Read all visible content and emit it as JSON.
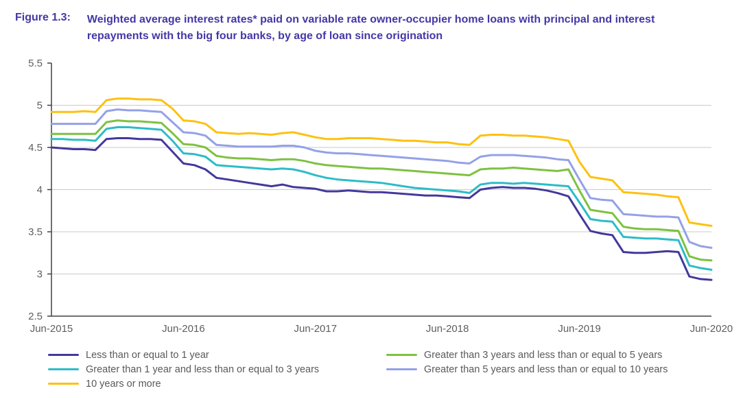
{
  "figure": {
    "label": "Figure 1.3:",
    "title": "Weighted average interest rates* paid on variable rate owner-occupier home loans with principal and interest repayments with the big four banks, by age of loan since origination"
  },
  "colors": {
    "title_text": "#4238a6",
    "axis_text": "#5b5e61",
    "legend_text": "#58595b",
    "gridline": "#c9cacb",
    "axis_line": "#404040",
    "background": "#ffffff"
  },
  "chart_data": {
    "type": "line",
    "title": "Weighted average interest rates paid on variable rate owner-occupier home loans, big four banks, by age of loan",
    "xlabel": "",
    "ylabel": "",
    "legend_position": "bottom",
    "grid": "horizontal",
    "y_axis": {
      "min": 2.5,
      "max": 5.5,
      "tick_values": [
        5.5,
        5,
        4.5,
        4,
        3.5,
        3,
        2.5
      ],
      "tick_labels": [
        "5.5",
        "5",
        "4.5",
        "4",
        "3.5",
        "3",
        "2.5"
      ],
      "grid_values": [
        5,
        4.5,
        4,
        3.5,
        3
      ]
    },
    "x_axis_ticks": [
      {
        "label": "Jun-2015",
        "month_index": 0
      },
      {
        "label": "Jun-2016",
        "month_index": 12
      },
      {
        "label": "Jun-2017",
        "month_index": 24
      },
      {
        "label": "Jun-2018",
        "month_index": 36
      },
      {
        "label": "Jun-2019",
        "month_index": 48
      },
      {
        "label": "Jun-2020",
        "month_index": 60
      }
    ],
    "x": [
      "Jun-2015",
      "Jul-2015",
      "Aug-2015",
      "Sep-2015",
      "Oct-2015",
      "Nov-2015",
      "Dec-2015",
      "Jan-2016",
      "Feb-2016",
      "Mar-2016",
      "Apr-2016",
      "May-2016",
      "Jun-2016",
      "Jul-2016",
      "Aug-2016",
      "Sep-2016",
      "Oct-2016",
      "Nov-2016",
      "Dec-2016",
      "Jan-2017",
      "Feb-2017",
      "Mar-2017",
      "Apr-2017",
      "May-2017",
      "Jun-2017",
      "Jul-2017",
      "Aug-2017",
      "Sep-2017",
      "Oct-2017",
      "Nov-2017",
      "Dec-2017",
      "Jan-2018",
      "Feb-2018",
      "Mar-2018",
      "Apr-2018",
      "May-2018",
      "Jun-2018",
      "Jul-2018",
      "Aug-2018",
      "Sep-2018",
      "Oct-2018",
      "Nov-2018",
      "Dec-2018",
      "Jan-2019",
      "Feb-2019",
      "Mar-2019",
      "Apr-2019",
      "May-2019",
      "Jun-2019",
      "Jul-2019",
      "Aug-2019",
      "Sep-2019",
      "Oct-2019",
      "Nov-2019",
      "Dec-2019",
      "Jan-2020",
      "Feb-2020",
      "Mar-2020",
      "Apr-2020",
      "May-2020",
      "Jun-2020"
    ],
    "series": [
      {
        "name": "Less than or equal to 1 year",
        "color": "#43389b",
        "values": [
          4.5,
          4.49,
          4.48,
          4.48,
          4.47,
          4.6,
          4.61,
          4.61,
          4.6,
          4.6,
          4.59,
          4.45,
          4.31,
          4.29,
          4.24,
          4.14,
          4.12,
          4.1,
          4.08,
          4.06,
          4.04,
          4.06,
          4.03,
          4.02,
          4.01,
          3.98,
          3.98,
          3.99,
          3.98,
          3.97,
          3.97,
          3.96,
          3.95,
          3.94,
          3.93,
          3.93,
          3.92,
          3.91,
          3.9,
          4.0,
          4.02,
          4.03,
          4.02,
          4.02,
          4.01,
          3.99,
          3.96,
          3.92,
          3.71,
          3.51,
          3.48,
          3.46,
          3.26,
          3.25,
          3.25,
          3.26,
          3.27,
          3.26,
          2.97,
          2.94,
          2.93
        ]
      },
      {
        "name": "Greater than 1 year and less than or equal to 3 years",
        "color": "#2cbcc7",
        "values": [
          4.6,
          4.6,
          4.59,
          4.59,
          4.58,
          4.72,
          4.74,
          4.74,
          4.73,
          4.72,
          4.71,
          4.58,
          4.43,
          4.42,
          4.39,
          4.29,
          4.28,
          4.27,
          4.26,
          4.25,
          4.24,
          4.25,
          4.24,
          4.21,
          4.17,
          4.14,
          4.12,
          4.11,
          4.1,
          4.09,
          4.08,
          4.06,
          4.04,
          4.02,
          4.01,
          4.0,
          3.99,
          3.98,
          3.96,
          4.06,
          4.08,
          4.08,
          4.07,
          4.08,
          4.07,
          4.06,
          4.05,
          4.04,
          3.85,
          3.65,
          3.63,
          3.62,
          3.44,
          3.43,
          3.42,
          3.42,
          3.41,
          3.4,
          3.1,
          3.07,
          3.05
        ]
      },
      {
        "name": "Greater than 3 years and less than or equal to 5 years",
        "color": "#7ec141",
        "values": [
          4.66,
          4.66,
          4.66,
          4.66,
          4.66,
          4.8,
          4.82,
          4.81,
          4.81,
          4.8,
          4.79,
          4.67,
          4.54,
          4.53,
          4.5,
          4.4,
          4.38,
          4.37,
          4.37,
          4.36,
          4.35,
          4.36,
          4.36,
          4.34,
          4.31,
          4.29,
          4.28,
          4.27,
          4.26,
          4.25,
          4.25,
          4.24,
          4.23,
          4.22,
          4.21,
          4.2,
          4.19,
          4.18,
          4.17,
          4.24,
          4.25,
          4.25,
          4.26,
          4.25,
          4.24,
          4.23,
          4.22,
          4.24,
          3.99,
          3.76,
          3.74,
          3.72,
          3.56,
          3.54,
          3.53,
          3.53,
          3.52,
          3.51,
          3.21,
          3.17,
          3.16
        ]
      },
      {
        "name": "Greater than 5 years and less than or equal to 10 years",
        "color": "#94a1e7",
        "values": [
          4.78,
          4.78,
          4.78,
          4.78,
          4.78,
          4.93,
          4.95,
          4.94,
          4.94,
          4.93,
          4.92,
          4.8,
          4.68,
          4.67,
          4.64,
          4.53,
          4.52,
          4.51,
          4.51,
          4.51,
          4.51,
          4.52,
          4.52,
          4.5,
          4.46,
          4.44,
          4.43,
          4.43,
          4.42,
          4.41,
          4.4,
          4.39,
          4.38,
          4.37,
          4.36,
          4.35,
          4.34,
          4.32,
          4.31,
          4.39,
          4.41,
          4.41,
          4.41,
          4.4,
          4.39,
          4.38,
          4.36,
          4.35,
          4.12,
          3.9,
          3.88,
          3.87,
          3.71,
          3.7,
          3.69,
          3.68,
          3.68,
          3.67,
          3.38,
          3.33,
          3.31
        ]
      },
      {
        "name": "10 years or more",
        "color": "#fdc110",
        "values": [
          4.92,
          4.92,
          4.92,
          4.93,
          4.92,
          5.06,
          5.08,
          5.08,
          5.07,
          5.07,
          5.06,
          4.96,
          4.82,
          4.81,
          4.78,
          4.68,
          4.67,
          4.66,
          4.67,
          4.66,
          4.65,
          4.67,
          4.68,
          4.65,
          4.62,
          4.6,
          4.6,
          4.61,
          4.61,
          4.61,
          4.6,
          4.59,
          4.58,
          4.58,
          4.57,
          4.56,
          4.56,
          4.54,
          4.53,
          4.64,
          4.65,
          4.65,
          4.64,
          4.64,
          4.63,
          4.62,
          4.6,
          4.58,
          4.33,
          4.15,
          4.13,
          4.11,
          3.97,
          3.96,
          3.95,
          3.94,
          3.92,
          3.91,
          3.61,
          3.59,
          3.57
        ]
      }
    ],
    "legend": {
      "left_column_series": [
        0,
        1,
        4
      ],
      "right_column_series": [
        2,
        3
      ]
    }
  }
}
